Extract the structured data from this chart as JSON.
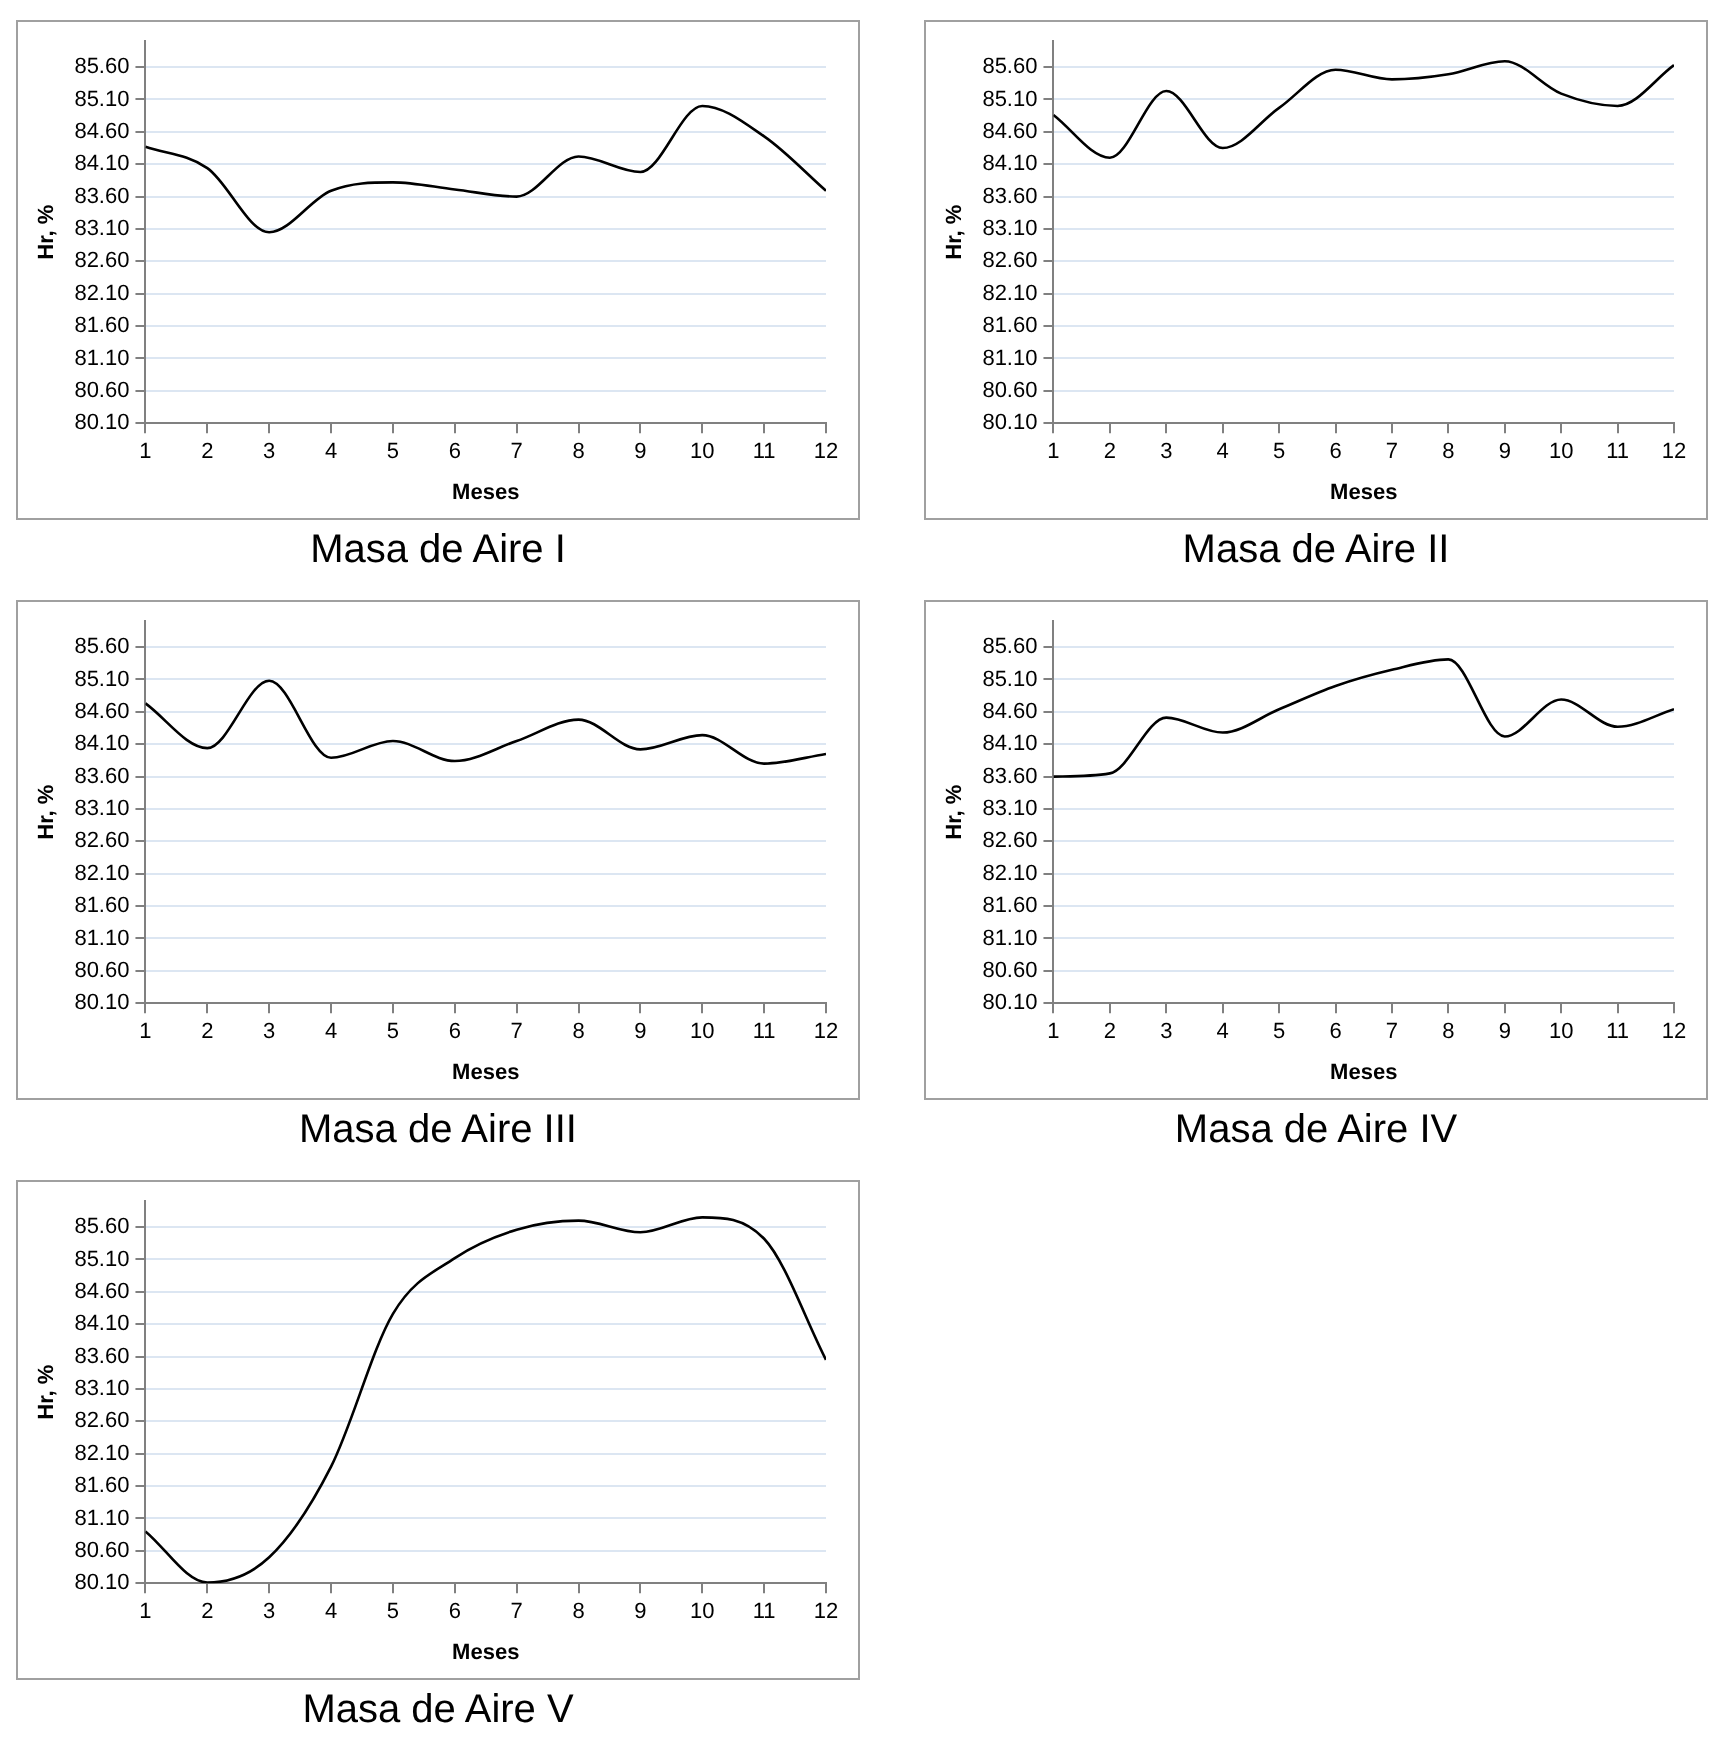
{
  "chart_data": [
    {
      "type": "line",
      "title": "Masa de Aire I",
      "xlabel": "Meses",
      "ylabel": "Hr, %",
      "color": "#000000",
      "grid": "y",
      "marker": "none",
      "x": [
        1,
        2,
        3,
        4,
        5,
        6,
        7,
        8,
        9,
        10,
        11,
        12
      ],
      "values": [
        84.37,
        84.04,
        83.05,
        83.69,
        83.82,
        83.71,
        83.6,
        84.22,
        83.98,
        85.0,
        84.53,
        83.69
      ],
      "xlim": [
        1,
        12
      ],
      "xticks": [
        1,
        2,
        3,
        4,
        5,
        6,
        7,
        8,
        9,
        10,
        11,
        12
      ],
      "ylim": [
        80.1,
        86.0
      ],
      "yticks": [
        {
          "value": 80.1,
          "label": "80.10"
        },
        {
          "value": 80.6,
          "label": "80.60"
        },
        {
          "value": 81.1,
          "label": "81.10"
        },
        {
          "value": 81.6,
          "label": "81.60"
        },
        {
          "value": 82.1,
          "label": "82.10"
        },
        {
          "value": 82.6,
          "label": "82.60"
        },
        {
          "value": 83.1,
          "label": "83.10"
        },
        {
          "value": 83.6,
          "label": "83.60"
        },
        {
          "value": 84.1,
          "label": "84.10"
        },
        {
          "value": 84.6,
          "label": "84.60"
        },
        {
          "value": 85.1,
          "label": "85.10"
        },
        {
          "value": 85.6,
          "label": "85.60"
        }
      ]
    },
    {
      "type": "line",
      "title": "Masa de Aire II",
      "xlabel": "Meses",
      "ylabel": "Hr, %",
      "color": "#000000",
      "grid": "y",
      "marker": "none",
      "x": [
        1,
        2,
        3,
        4,
        5,
        6,
        7,
        8,
        9,
        10,
        11,
        12
      ],
      "values": [
        84.86,
        84.2,
        85.23,
        84.35,
        84.97,
        85.56,
        85.41,
        85.49,
        85.69,
        85.19,
        85.0,
        85.63
      ],
      "xlim": [
        1,
        12
      ],
      "xticks": [
        1,
        2,
        3,
        4,
        5,
        6,
        7,
        8,
        9,
        10,
        11,
        12
      ],
      "ylim": [
        80.1,
        86.0
      ],
      "yticks": [
        {
          "value": 80.1,
          "label": "80.10"
        },
        {
          "value": 80.6,
          "label": "80.60"
        },
        {
          "value": 81.1,
          "label": "81.10"
        },
        {
          "value": 81.6,
          "label": "81.60"
        },
        {
          "value": 82.1,
          "label": "82.10"
        },
        {
          "value": 82.6,
          "label": "82.60"
        },
        {
          "value": 83.1,
          "label": "83.10"
        },
        {
          "value": 83.6,
          "label": "83.60"
        },
        {
          "value": 84.1,
          "label": "84.10"
        },
        {
          "value": 84.6,
          "label": "84.60"
        },
        {
          "value": 85.1,
          "label": "85.10"
        },
        {
          "value": 85.6,
          "label": "85.60"
        }
      ]
    },
    {
      "type": "line",
      "title": "Masa de Aire III",
      "xlabel": "Meses",
      "ylabel": "Hr, %",
      "color": "#000000",
      "grid": "y",
      "marker": "none",
      "x": [
        1,
        2,
        3,
        4,
        5,
        6,
        7,
        8,
        9,
        10,
        11,
        12
      ],
      "values": [
        84.73,
        84.04,
        85.08,
        83.89,
        84.15,
        83.84,
        84.15,
        84.48,
        84.02,
        84.24,
        83.8,
        83.95
      ],
      "xlim": [
        1,
        12
      ],
      "xticks": [
        1,
        2,
        3,
        4,
        5,
        6,
        7,
        8,
        9,
        10,
        11,
        12
      ],
      "ylim": [
        80.1,
        86.0
      ],
      "yticks": [
        {
          "value": 80.1,
          "label": "80.10"
        },
        {
          "value": 80.6,
          "label": "80.60"
        },
        {
          "value": 81.1,
          "label": "81.10"
        },
        {
          "value": 81.6,
          "label": "81.60"
        },
        {
          "value": 82.1,
          "label": "82.10"
        },
        {
          "value": 82.6,
          "label": "82.60"
        },
        {
          "value": 83.1,
          "label": "83.10"
        },
        {
          "value": 83.6,
          "label": "83.60"
        },
        {
          "value": 84.1,
          "label": "84.10"
        },
        {
          "value": 84.6,
          "label": "84.60"
        },
        {
          "value": 85.1,
          "label": "85.10"
        },
        {
          "value": 85.6,
          "label": "85.60"
        }
      ]
    },
    {
      "type": "line",
      "title": "Masa de Aire IV",
      "xlabel": "Meses",
      "ylabel": "Hr, %",
      "color": "#000000",
      "grid": "y",
      "marker": "none",
      "x": [
        1,
        2,
        3,
        4,
        5,
        6,
        7,
        8,
        9,
        10,
        11,
        12
      ],
      "values": [
        83.6,
        83.65,
        84.51,
        84.28,
        84.64,
        85.0,
        85.25,
        85.41,
        84.22,
        84.79,
        84.37,
        84.64
      ],
      "xlim": [
        1,
        12
      ],
      "xticks": [
        1,
        2,
        3,
        4,
        5,
        6,
        7,
        8,
        9,
        10,
        11,
        12
      ],
      "ylim": [
        80.1,
        86.0
      ],
      "yticks": [
        {
          "value": 80.1,
          "label": "80.10"
        },
        {
          "value": 80.6,
          "label": "80.60"
        },
        {
          "value": 81.1,
          "label": "81.10"
        },
        {
          "value": 81.6,
          "label": "81.60"
        },
        {
          "value": 82.1,
          "label": "82.10"
        },
        {
          "value": 82.6,
          "label": "82.60"
        },
        {
          "value": 83.1,
          "label": "83.10"
        },
        {
          "value": 83.6,
          "label": "83.60"
        },
        {
          "value": 84.1,
          "label": "84.10"
        },
        {
          "value": 84.6,
          "label": "84.60"
        },
        {
          "value": 85.1,
          "label": "85.10"
        },
        {
          "value": 85.6,
          "label": "85.60"
        }
      ]
    },
    {
      "type": "line",
      "title": "Masa de Aire V",
      "xlabel": "Meses",
      "ylabel": "Hr, %",
      "color": "#000000",
      "grid": "y",
      "marker": "none",
      "x": [
        1,
        2,
        3,
        4,
        5,
        6,
        7,
        8,
        9,
        10,
        11,
        12
      ],
      "values": [
        80.9,
        80.11,
        80.5,
        81.9,
        84.26,
        85.12,
        85.56,
        85.7,
        85.52,
        85.75,
        85.42,
        83.55
      ],
      "xlim": [
        1,
        12
      ],
      "xticks": [
        1,
        2,
        3,
        4,
        5,
        6,
        7,
        8,
        9,
        10,
        11,
        12
      ],
      "ylim": [
        80.1,
        86.0
      ],
      "yticks": [
        {
          "value": 80.1,
          "label": "80.10"
        },
        {
          "value": 80.6,
          "label": "80.60"
        },
        {
          "value": 81.1,
          "label": "81.10"
        },
        {
          "value": 81.6,
          "label": "81.60"
        },
        {
          "value": 82.1,
          "label": "82.10"
        },
        {
          "value": 82.6,
          "label": "82.60"
        },
        {
          "value": 83.1,
          "label": "83.10"
        },
        {
          "value": 83.6,
          "label": "83.60"
        },
        {
          "value": 84.1,
          "label": "84.10"
        },
        {
          "value": 84.6,
          "label": "84.60"
        },
        {
          "value": 85.1,
          "label": "85.10"
        },
        {
          "value": 85.6,
          "label": "85.60"
        }
      ]
    }
  ]
}
